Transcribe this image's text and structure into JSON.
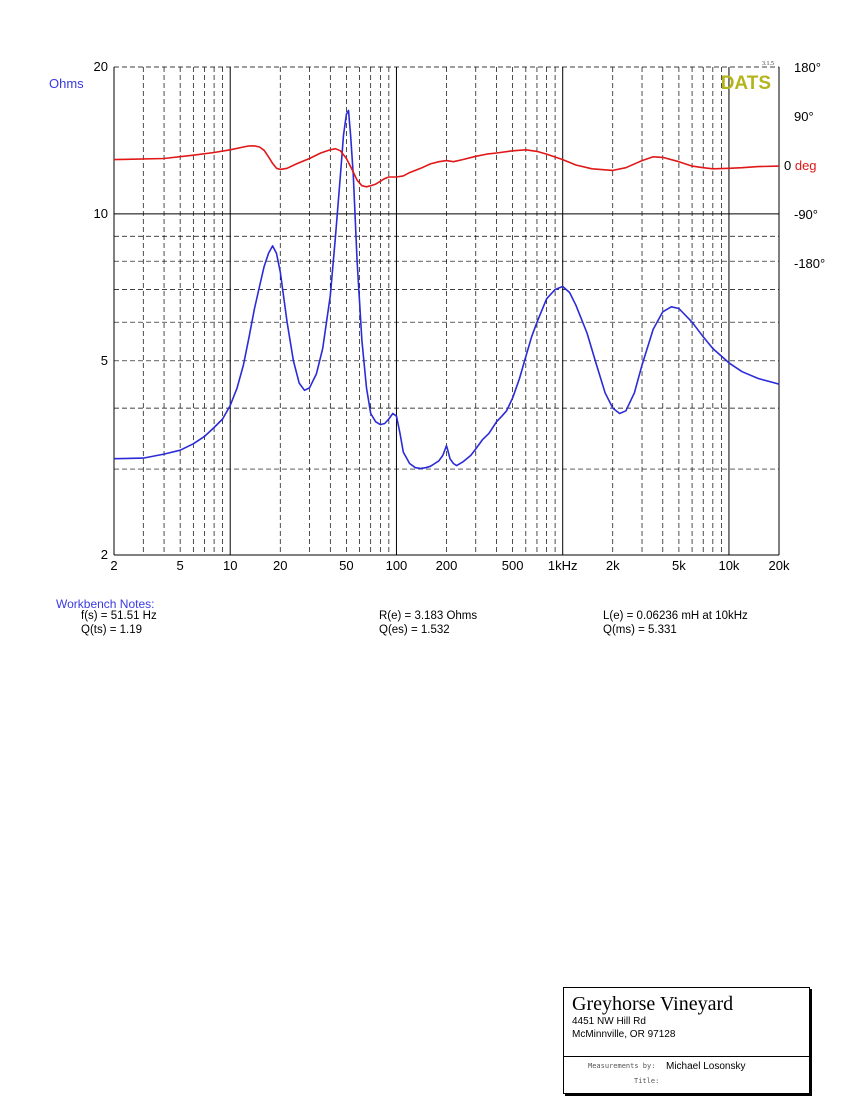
{
  "chart_data": {
    "type": "line",
    "title": "",
    "version": "3.1.5",
    "brand": "DATS",
    "colors": {
      "impedance": "#2b2bd8",
      "phase": "#e01818",
      "ohms_label": "#3a3ae0",
      "brand": "#b4b41e",
      "grid": "#000000"
    },
    "xaxis": {
      "scale": "log",
      "range": [
        2,
        20000
      ],
      "unit": "Hz",
      "ticks": [
        {
          "v": 2,
          "label": "2"
        },
        {
          "v": 5,
          "label": "5"
        },
        {
          "v": 10,
          "label": "10"
        },
        {
          "v": 20,
          "label": "20"
        },
        {
          "v": 50,
          "label": "50"
        },
        {
          "v": 100,
          "label": "100"
        },
        {
          "v": 200,
          "label": "200"
        },
        {
          "v": 500,
          "label": "500"
        },
        {
          "v": 1000,
          "label": "1kHz"
        },
        {
          "v": 2000,
          "label": "2k"
        },
        {
          "v": 5000,
          "label": "5k"
        },
        {
          "v": 10000,
          "label": "10k"
        },
        {
          "v": 20000,
          "label": "20k"
        }
      ]
    },
    "yaxis_left": {
      "label": "Ohms",
      "scale": "log",
      "range": [
        2,
        20
      ],
      "ticks": [
        {
          "v": 2,
          "label": "2"
        },
        {
          "v": 5,
          "label": "5"
        },
        {
          "v": 10,
          "label": "10"
        },
        {
          "v": 20,
          "label": "20"
        }
      ]
    },
    "yaxis_right": {
      "label_value": "0",
      "label_unit": "deg",
      "range": [
        -180,
        180
      ],
      "ticks": [
        {
          "v": 180,
          "label": "180°"
        },
        {
          "v": 90,
          "label": "90°"
        },
        {
          "v": 0,
          "label": "0"
        },
        {
          "v": -90,
          "label": "-90°"
        },
        {
          "v": -180,
          "label": "-180°"
        }
      ]
    },
    "grid": true,
    "series": [
      {
        "key": "impedance",
        "unit": "Ohms",
        "points": [
          [
            2,
            3.15
          ],
          [
            3,
            3.16
          ],
          [
            4,
            3.22
          ],
          [
            5,
            3.28
          ],
          [
            6,
            3.38
          ],
          [
            7,
            3.5
          ],
          [
            8,
            3.65
          ],
          [
            9,
            3.8
          ],
          [
            10,
            4.05
          ],
          [
            11,
            4.4
          ],
          [
            12,
            4.9
          ],
          [
            13,
            5.6
          ],
          [
            14,
            6.4
          ],
          [
            15,
            7.1
          ],
          [
            16,
            7.8
          ],
          [
            17,
            8.3
          ],
          [
            18,
            8.6
          ],
          [
            19,
            8.3
          ],
          [
            20,
            7.6
          ],
          [
            22,
            6.0
          ],
          [
            24,
            5.0
          ],
          [
            26,
            4.5
          ],
          [
            28,
            4.35
          ],
          [
            30,
            4.4
          ],
          [
            33,
            4.7
          ],
          [
            36,
            5.3
          ],
          [
            40,
            6.8
          ],
          [
            43,
            9.0
          ],
          [
            46,
            12.0
          ],
          [
            48,
            14.5
          ],
          [
            50,
            16.0
          ],
          [
            51.5,
            16.3
          ],
          [
            53,
            14.5
          ],
          [
            55,
            12.0
          ],
          [
            58,
            8.0
          ],
          [
            62,
            5.5
          ],
          [
            66,
            4.4
          ],
          [
            70,
            3.9
          ],
          [
            75,
            3.75
          ],
          [
            80,
            3.7
          ],
          [
            85,
            3.72
          ],
          [
            90,
            3.8
          ],
          [
            95,
            3.9
          ],
          [
            100,
            3.85
          ],
          [
            105,
            3.55
          ],
          [
            110,
            3.25
          ],
          [
            120,
            3.08
          ],
          [
            130,
            3.02
          ],
          [
            140,
            3.01
          ],
          [
            150,
            3.02
          ],
          [
            160,
            3.04
          ],
          [
            170,
            3.08
          ],
          [
            180,
            3.12
          ],
          [
            190,
            3.2
          ],
          [
            200,
            3.35
          ],
          [
            205,
            3.25
          ],
          [
            210,
            3.15
          ],
          [
            220,
            3.08
          ],
          [
            230,
            3.05
          ],
          [
            250,
            3.1
          ],
          [
            280,
            3.2
          ],
          [
            300,
            3.3
          ],
          [
            330,
            3.45
          ],
          [
            360,
            3.55
          ],
          [
            400,
            3.75
          ],
          [
            430,
            3.85
          ],
          [
            460,
            3.95
          ],
          [
            500,
            4.2
          ],
          [
            550,
            4.6
          ],
          [
            600,
            5.1
          ],
          [
            650,
            5.6
          ],
          [
            700,
            6.0
          ],
          [
            800,
            6.7
          ],
          [
            900,
            7.0
          ],
          [
            1000,
            7.1
          ],
          [
            1100,
            6.9
          ],
          [
            1200,
            6.5
          ],
          [
            1400,
            5.7
          ],
          [
            1600,
            4.9
          ],
          [
            1800,
            4.3
          ],
          [
            2000,
            4.0
          ],
          [
            2200,
            3.9
          ],
          [
            2400,
            3.95
          ],
          [
            2700,
            4.3
          ],
          [
            3000,
            4.9
          ],
          [
            3500,
            5.8
          ],
          [
            4000,
            6.3
          ],
          [
            4500,
            6.45
          ],
          [
            5000,
            6.4
          ],
          [
            6000,
            6.0
          ],
          [
            7000,
            5.6
          ],
          [
            8000,
            5.3
          ],
          [
            10000,
            4.95
          ],
          [
            12000,
            4.75
          ],
          [
            15000,
            4.6
          ],
          [
            20000,
            4.48
          ]
        ]
      },
      {
        "key": "phase",
        "unit": "deg",
        "points": [
          [
            2,
            10
          ],
          [
            4,
            12
          ],
          [
            6,
            18
          ],
          [
            8,
            23
          ],
          [
            10,
            28
          ],
          [
            12,
            33
          ],
          [
            13,
            35
          ],
          [
            14,
            35
          ],
          [
            15,
            33
          ],
          [
            16,
            27
          ],
          [
            17,
            15
          ],
          [
            18,
            3
          ],
          [
            19,
            -6
          ],
          [
            20,
            -8
          ],
          [
            22,
            -6
          ],
          [
            25,
            2
          ],
          [
            30,
            12
          ],
          [
            35,
            22
          ],
          [
            40,
            28
          ],
          [
            43,
            30
          ],
          [
            46,
            26
          ],
          [
            50,
            12
          ],
          [
            54,
            -8
          ],
          [
            58,
            -28
          ],
          [
            62,
            -38
          ],
          [
            66,
            -40
          ],
          [
            70,
            -38
          ],
          [
            75,
            -35
          ],
          [
            80,
            -30
          ],
          [
            85,
            -25
          ],
          [
            90,
            -22
          ],
          [
            100,
            -22
          ],
          [
            110,
            -20
          ],
          [
            120,
            -14
          ],
          [
            140,
            -6
          ],
          [
            160,
            2
          ],
          [
            180,
            6
          ],
          [
            200,
            8
          ],
          [
            220,
            6
          ],
          [
            250,
            10
          ],
          [
            300,
            16
          ],
          [
            350,
            20
          ],
          [
            400,
            22
          ],
          [
            500,
            26
          ],
          [
            600,
            28
          ],
          [
            700,
            25
          ],
          [
            800,
            20
          ],
          [
            1000,
            10
          ],
          [
            1200,
            0
          ],
          [
            1500,
            -7
          ],
          [
            2000,
            -10
          ],
          [
            2400,
            -5
          ],
          [
            3000,
            8
          ],
          [
            3500,
            15
          ],
          [
            4000,
            14
          ],
          [
            5000,
            6
          ],
          [
            6000,
            -2
          ],
          [
            7000,
            -5
          ],
          [
            8000,
            -7
          ],
          [
            10000,
            -6
          ],
          [
            12000,
            -5
          ],
          [
            15000,
            -3
          ],
          [
            20000,
            -2
          ]
        ]
      }
    ]
  },
  "notes": {
    "title": "Workbench Notes:",
    "fs": "f(s) = 51.51 Hz",
    "qts": "Q(ts) = 1.19",
    "re": "R(e) = 3.183 Ohms",
    "qes": "Q(es) = 1.532",
    "le": "L(e) = 0.06236 mH at 10kHz",
    "qms": "Q(ms) = 5.331"
  },
  "titleblock": {
    "name": "Greyhorse Vineyard",
    "address1": "4451 NW Hill Rd",
    "address2": "McMinnville, OR 97128",
    "measurements_label": "Measurements by:",
    "measurements_value": "Michael Losonsky",
    "title_label": "Title:"
  }
}
